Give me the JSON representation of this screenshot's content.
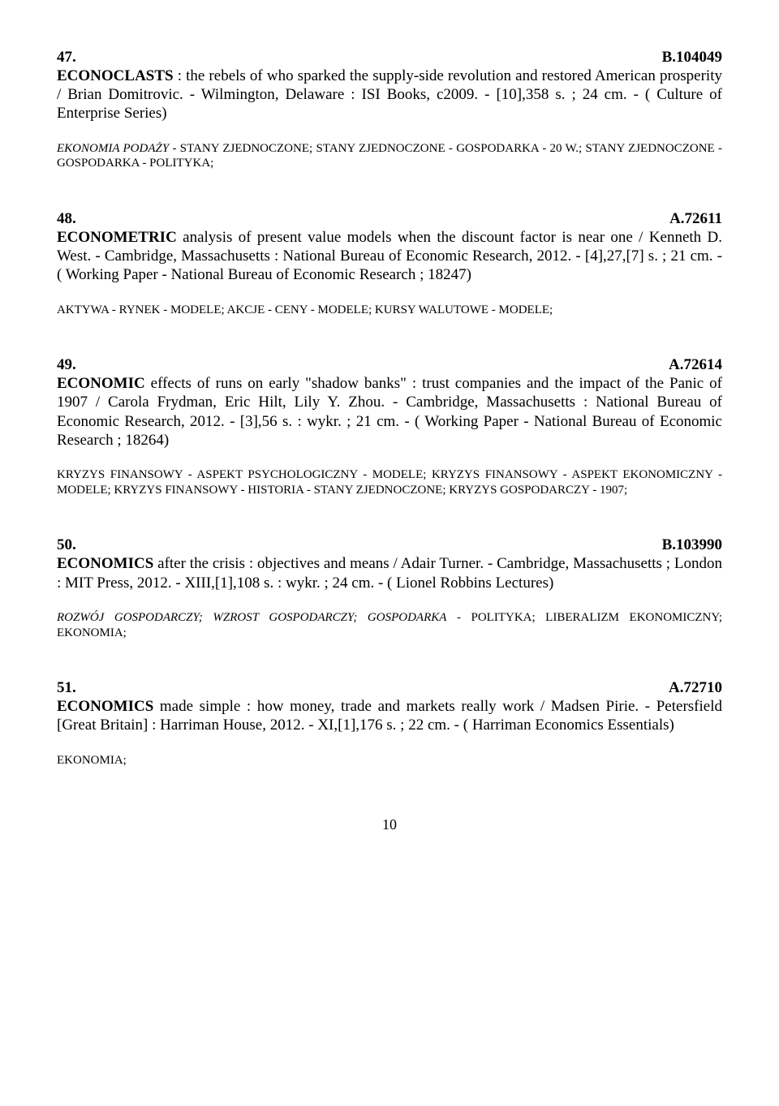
{
  "entries": [
    {
      "num": "47.",
      "code": "B.104049",
      "title": "ECONOCLASTS",
      "body": " : the rebels of who sparked the supply-side revolution and restored American prosperity / Brian Domitrovic. - Wilmington, Delaware : ISI Books, c2009. - [10],358 s. ; 24 cm. - ( Culture of Enterprise Series)",
      "subjects_italic": "EKONOMIA PODAŻY",
      "subjects_rest": " - STANY ZJEDNOCZONE; STANY ZJEDNOCZONE - GOSPODARKA - 20 W.; STANY ZJEDNOCZONE - GOSPODARKA - POLITYKA;"
    },
    {
      "num": "48.",
      "code": "A.72611",
      "title": "ECONOMETRIC",
      "body": " analysis of present value models when the discount factor is near one / Kenneth D. West. - Cambridge, Massachusetts : National Bureau of Economic Research, 2012. - [4],27,[7] s. ; 21 cm. - ( Working Paper - National Bureau of Economic Research ; 18247)",
      "subjects": "AKTYWA - RYNEK - MODELE; AKCJE - CENY - MODELE; KURSY WALUTOWE - MODELE;"
    },
    {
      "num": "49.",
      "code": "A.72614",
      "title": "ECONOMIC",
      "body": " effects of runs on early \"shadow banks\" : trust companies and the impact of the Panic of 1907 / Carola Frydman, Eric Hilt, Lily Y. Zhou. - Cambridge, Massachusetts : National Bureau of Economic Research, 2012. - [3],56 s. : wykr. ; 21 cm. - ( Working Paper - National Bureau of Economic Research ; 18264)",
      "subjects": "KRYZYS FINANSOWY - ASPEKT PSYCHOLOGICZNY - MODELE; KRYZYS FINANSOWY - ASPEKT EKONOMICZNY - MODELE; KRYZYS FINANSOWY - HISTORIA - STANY ZJEDNOCZONE; KRYZYS GOSPODARCZY - 1907;"
    },
    {
      "num": "50.",
      "code": "B.103990",
      "title": "ECONOMICS",
      "body": " after the crisis : objectives and means / Adair Turner. - Cambridge, Massachusetts ; London : MIT Press, 2012. - XIII,[1],108 s. : wykr. ; 24 cm. - ( Lionel Robbins Lectures)",
      "subjects_italic": "ROZWÓJ GOSPODARCZY; WZROST GOSPODARCZY; GOSPODARKA",
      "subjects_rest": " - POLITYKA; LIBERALIZM EKONOMICZNY; EKONOMIA;"
    },
    {
      "num": "51.",
      "code": "A.72710",
      "title": "ECONOMICS",
      "body": " made simple : how money, trade and markets really work / Madsen Pirie. - Petersfield [Great Britain] : Harriman House, 2012. - XI,[1],176 s. ; 22 cm. - ( Harriman Economics Essentials)",
      "subjects": "EKONOMIA;"
    }
  ],
  "page_number": "10"
}
